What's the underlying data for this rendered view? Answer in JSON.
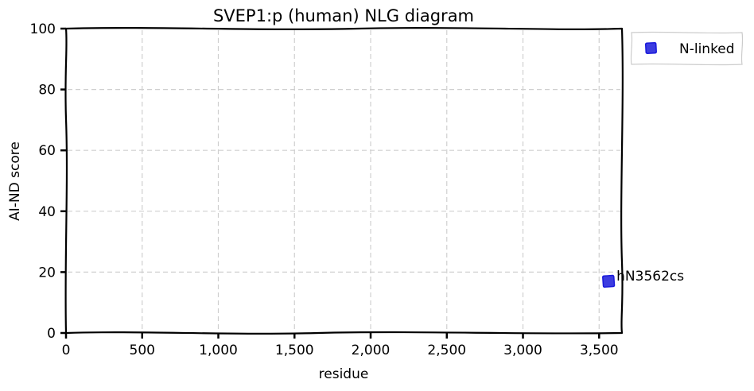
{
  "chart_data": {
    "type": "scatter",
    "title": "SVEP1:p (human) NLG diagram",
    "xlabel": "residue",
    "ylabel": "AI-ND score",
    "xlim": [
      0,
      3650
    ],
    "ylim": [
      0,
      100
    ],
    "xticks": [
      0,
      500,
      1000,
      1500,
      2000,
      2500,
      3000,
      3500
    ],
    "xtick_labels": [
      "0",
      "500",
      "1,000",
      "1,500",
      "2,000",
      "2,500",
      "3,000",
      "3,500"
    ],
    "yticks": [
      0,
      20,
      40,
      60,
      80,
      100
    ],
    "ytick_labels": [
      "0",
      "20",
      "40",
      "60",
      "80",
      "100"
    ],
    "grid": true,
    "legend_position": "outside-top-right",
    "series": [
      {
        "name": "N-linked",
        "marker": "square",
        "color": "#1a1adb",
        "points": [
          {
            "x": 3562,
            "y": 17,
            "label": "hN3562cs"
          }
        ]
      }
    ]
  }
}
